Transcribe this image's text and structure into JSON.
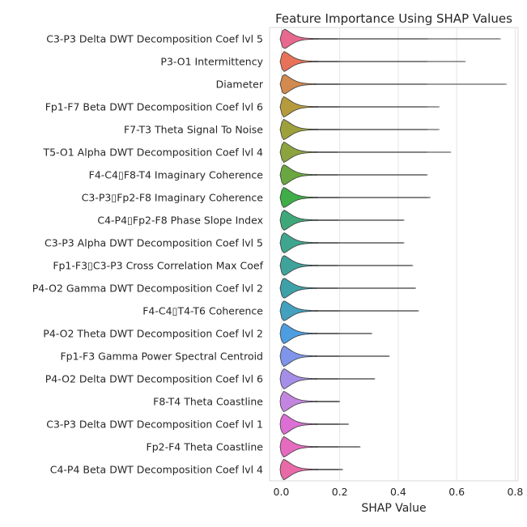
{
  "chart_data": {
    "type": "violin",
    "title": "Feature Importance Using SHAP Values",
    "xlabel": "SHAP Value",
    "ylabel": "",
    "xlim": [
      -0.04,
      0.81
    ],
    "xticks": [
      0.0,
      0.2,
      0.4,
      0.6,
      0.8
    ],
    "xtick_labels": [
      "0.0",
      "0.2",
      "0.4",
      "0.6",
      "0.8"
    ],
    "grid": "vertical",
    "orientation": "horizontal",
    "series": [
      {
        "feature": "C3-P3 Delta DWT Decomposition Coef lvl 5",
        "max": 0.75,
        "color": "#e8698f"
      },
      {
        "feature": "P3-O1 Intermittency",
        "max": 0.63,
        "color": "#e8715a"
      },
      {
        "feature": "Diameter",
        "max": 0.77,
        "color": "#d28a4e"
      },
      {
        "feature": "Fp1-F7 Beta DWT Decomposition Coef lvl 6",
        "max": 0.54,
        "color": "#b69a3e"
      },
      {
        "feature": "F7-T3 Theta Signal To Noise",
        "max": 0.54,
        "color": "#9ea03c"
      },
      {
        "feature": "T5-O1 Alpha DWT Decomposition Coef lvl 4",
        "max": 0.58,
        "color": "#8ca33f"
      },
      {
        "feature": "F4-C4▯F8-T4 Imaginary Coherence",
        "max": 0.5,
        "color": "#6aa740"
      },
      {
        "feature": "C3-P3▯Fp2-F8 Imaginary Coherence",
        "max": 0.51,
        "color": "#3fae48"
      },
      {
        "feature": "C4-P4▯Fp2-F8 Phase Slope Index",
        "max": 0.42,
        "color": "#3fa87a"
      },
      {
        "feature": "C3-P3 Alpha DWT Decomposition Coef lvl 5",
        "max": 0.42,
        "color": "#3fa58f"
      },
      {
        "feature": "Fp1-F3▯C3-P3 Cross Correlation Max Coef",
        "max": 0.45,
        "color": "#3fa39b"
      },
      {
        "feature": "P4-O2 Gamma DWT Decomposition Coef lvl 2",
        "max": 0.46,
        "color": "#3fa1a8"
      },
      {
        "feature": "F4-C4▯T4-T6 Coherence",
        "max": 0.47,
        "color": "#43a0bf"
      },
      {
        "feature": "P4-O2 Theta DWT Decomposition Coef lvl 2",
        "max": 0.31,
        "color": "#4d9de0"
      },
      {
        "feature": "Fp1-F3 Gamma Power Spectral Centroid",
        "max": 0.37,
        "color": "#7f95ea"
      },
      {
        "feature": "P4-O2 Delta DWT Decomposition Coef lvl 6",
        "max": 0.32,
        "color": "#a58ee8"
      },
      {
        "feature": "F8-T4 Theta Coastline",
        "max": 0.2,
        "color": "#c386e0"
      },
      {
        "feature": "C3-P3 Delta DWT Decomposition Coef lvl 1",
        "max": 0.23,
        "color": "#dc6fd4"
      },
      {
        "feature": "Fp2-F4 Theta Coastline",
        "max": 0.27,
        "color": "#e56bbf"
      },
      {
        "feature": "C4-P4 Beta DWT Decomposition Coef lvl 4",
        "max": 0.21,
        "color": "#e86aa6"
      }
    ]
  }
}
